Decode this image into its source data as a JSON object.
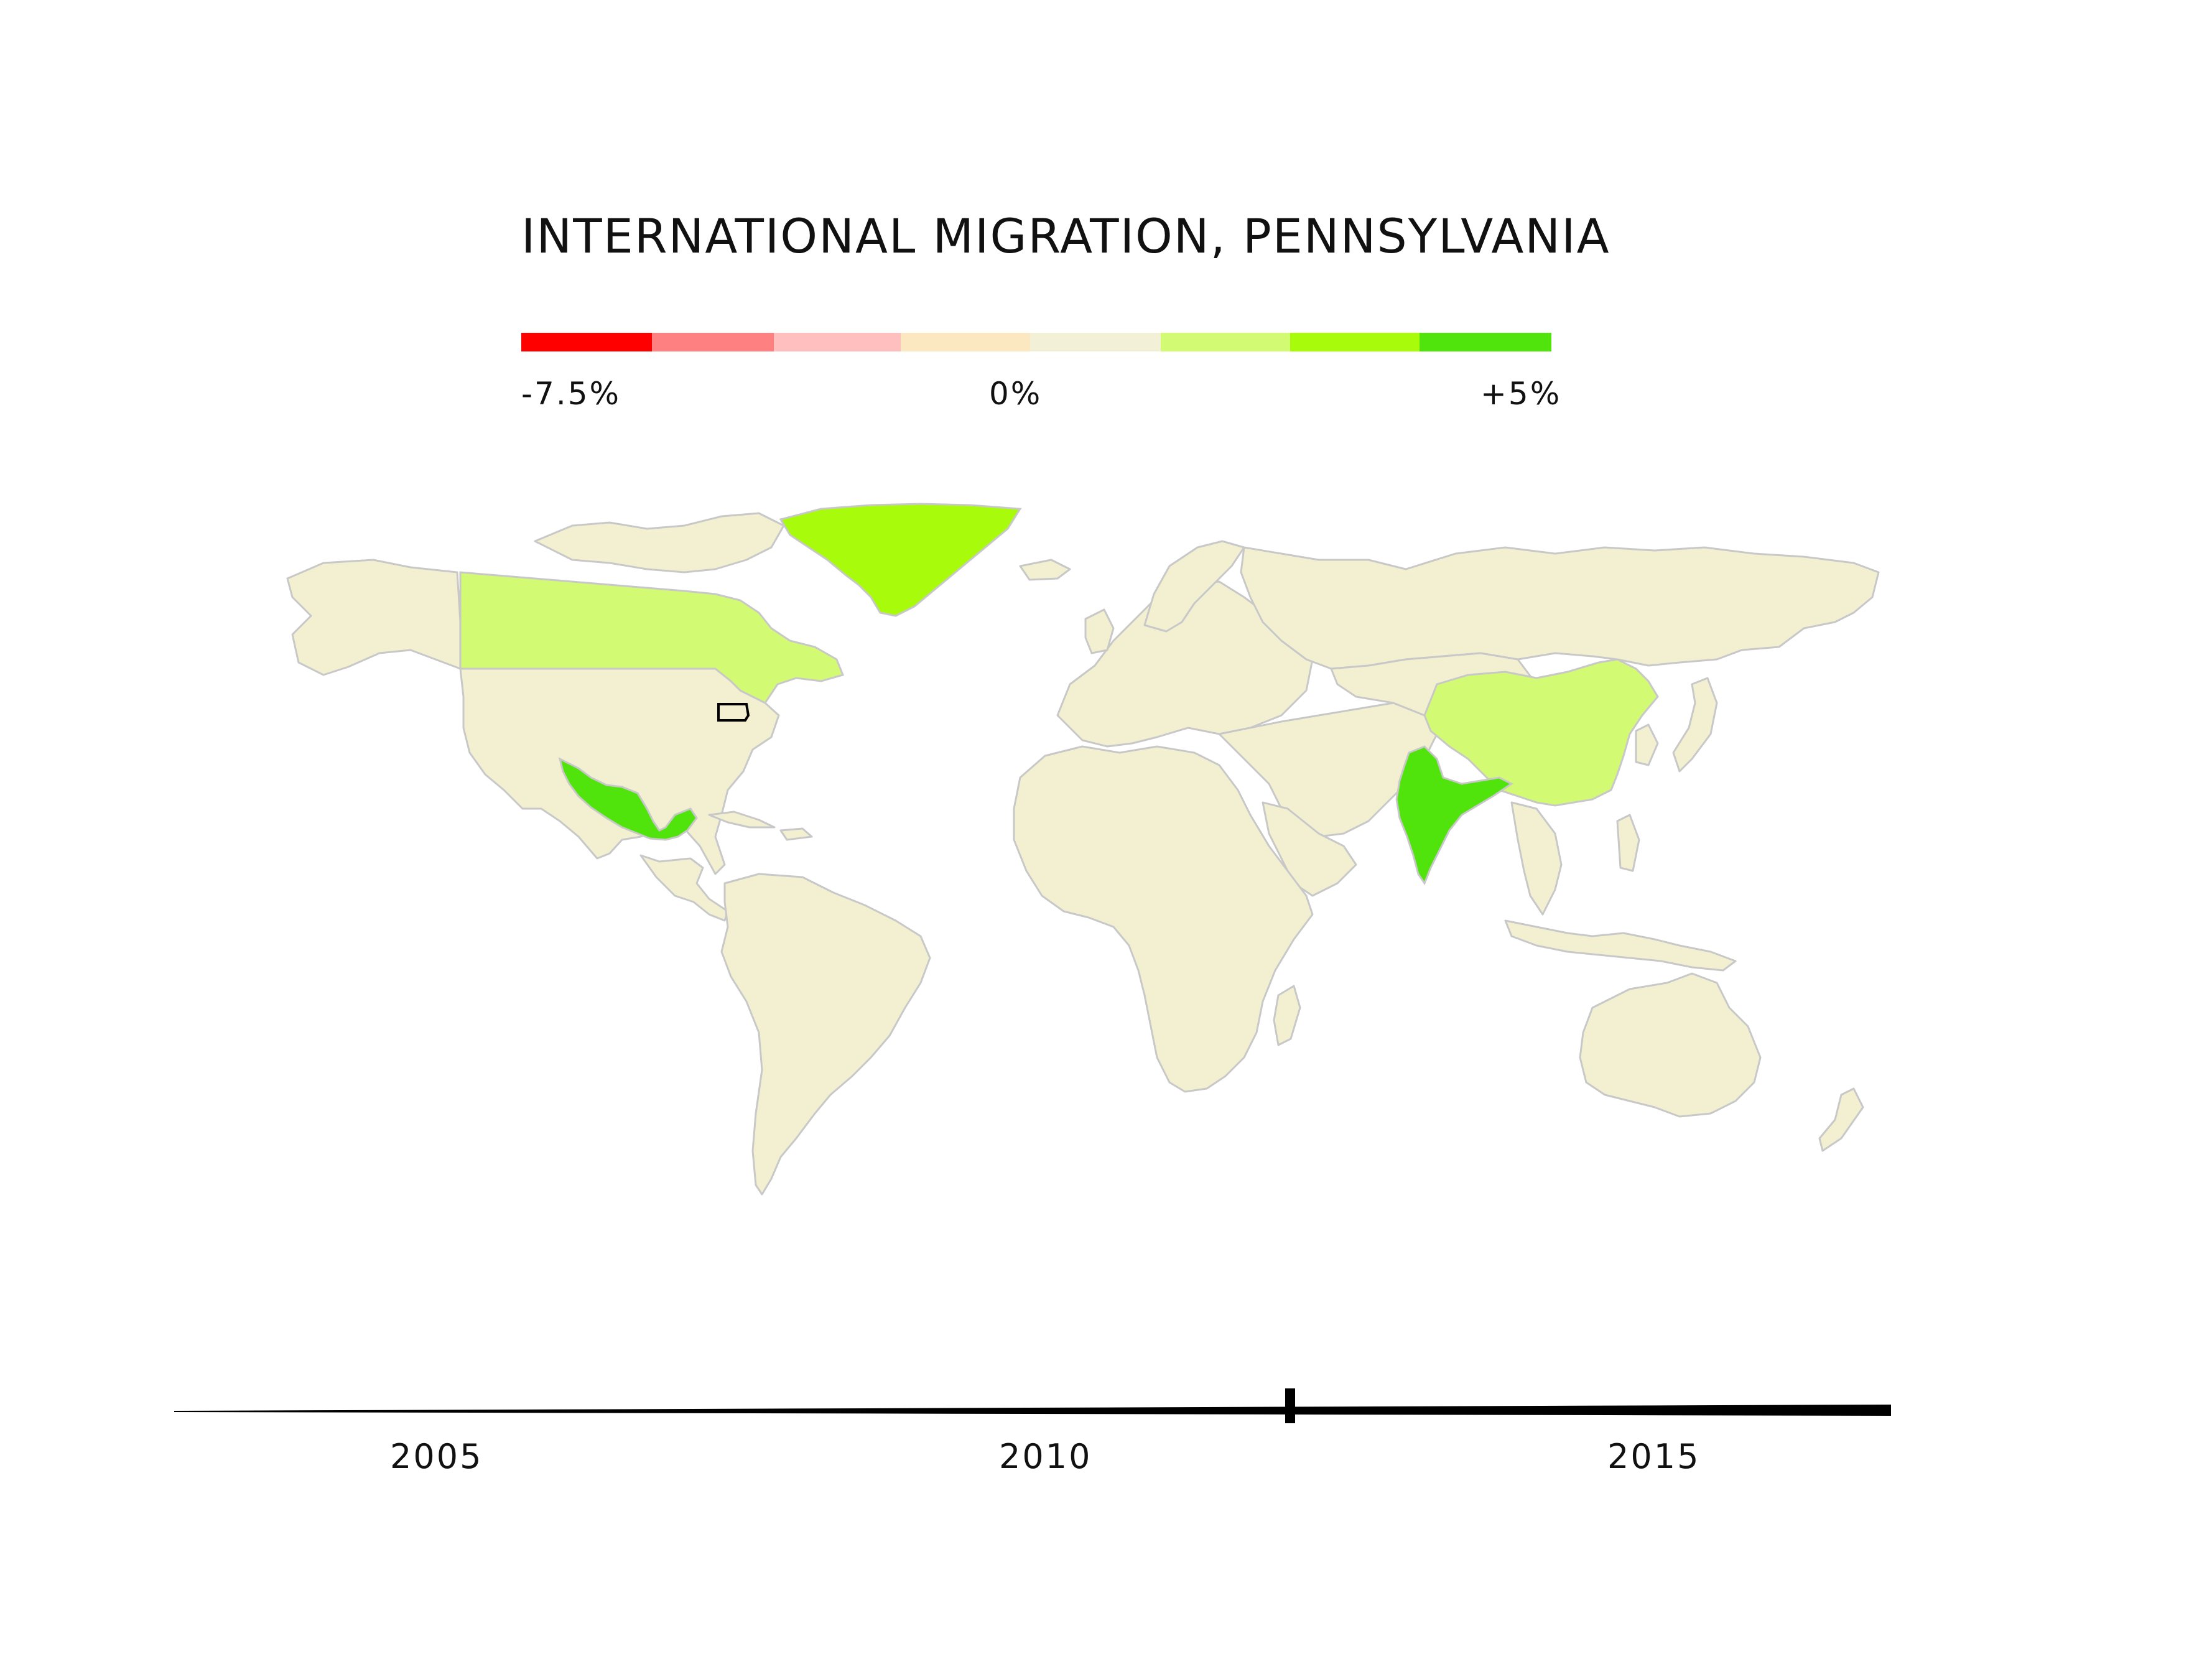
{
  "title": "INTERNATIONAL MIGRATION, PENNSYLVANIA",
  "legend": {
    "colors": [
      "#ff0000",
      "#ff8080",
      "#ffbfbf",
      "#fbe7c0",
      "#f2f0d6",
      "#d2fa73",
      "#a8fb0a",
      "#50e40c"
    ],
    "min_label": "-7.5%",
    "mid_label": "0%",
    "max_label": "+5%"
  },
  "map": {
    "land_color": "#f2f0d0",
    "border_color": "#c8c8c8",
    "highlighted_countries": [
      {
        "name": "Greenland",
        "color": "#a8fb0a"
      },
      {
        "name": "Canada",
        "color": "#d2fa73"
      },
      {
        "name": "Mexico",
        "color": "#50e40c"
      },
      {
        "name": "India",
        "color": "#50e40c"
      },
      {
        "name": "China",
        "color": "#d2fa73"
      }
    ],
    "outlined_region": "Pennsylvania"
  },
  "timeline": {
    "years": [
      "2005",
      "2010",
      "2015"
    ],
    "current_year_fraction": 0.65
  }
}
